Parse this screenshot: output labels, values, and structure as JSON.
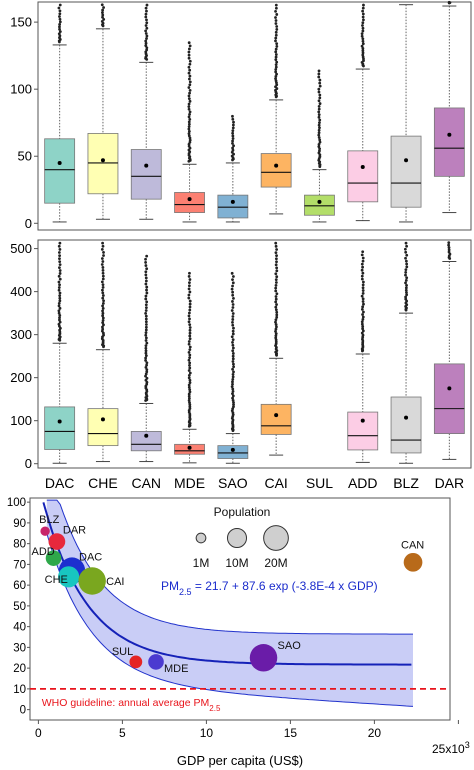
{
  "colors": {
    "DAC": "#8ed3c7",
    "CHE": "#ffffb3",
    "CAN": "#bebada",
    "MDE": "#fb8072",
    "SAO": "#80b1d3",
    "CAI": "#fdb462",
    "SUL": "#b3de69",
    "ADD": "#fccde5",
    "BLZ": "#d9d9d9",
    "DAR": "#bc80bd"
  },
  "chart_data": [
    {
      "type": "box",
      "categories": [
        "DAC",
        "CHE",
        "CAN",
        "MDE",
        "SAO",
        "CAI",
        "SUL",
        "ADD",
        "BLZ",
        "DAR"
      ],
      "ylim": [
        -5,
        165
      ],
      "yticks": [
        "0",
        "50",
        "100",
        "150"
      ],
      "boxes": [
        {
          "cat": "DAC",
          "low": 1,
          "q1": 15,
          "median": 40,
          "q3": 63,
          "high": 133,
          "mean": 45,
          "outliers_to": 165
        },
        {
          "cat": "CHE",
          "low": 3,
          "q1": 22,
          "median": 45,
          "q3": 67,
          "high": 145,
          "mean": 47,
          "outliers_to": 165
        },
        {
          "cat": "CAN",
          "low": 3,
          "q1": 18,
          "median": 35,
          "q3": 55,
          "high": 120,
          "mean": 43,
          "outliers_to": 165
        },
        {
          "cat": "MDE",
          "low": 1,
          "q1": 8,
          "median": 14,
          "q3": 23,
          "high": 44,
          "mean": 18,
          "outliers_to": 137
        },
        {
          "cat": "SAO",
          "low": 1,
          "q1": 4,
          "median": 12,
          "q3": 21,
          "high": 45,
          "mean": 16,
          "outliers_to": 82
        },
        {
          "cat": "CAI",
          "low": 7,
          "q1": 27,
          "median": 38,
          "q3": 52,
          "high": 92,
          "mean": 43,
          "outliers_to": 165
        },
        {
          "cat": "SUL",
          "low": 1,
          "q1": 6,
          "median": 13,
          "q3": 21,
          "high": 40,
          "mean": 16,
          "outliers_to": 116
        },
        {
          "cat": "ADD",
          "low": 2,
          "q1": 16,
          "median": 30,
          "q3": 54,
          "high": 115,
          "mean": 42,
          "outliers_to": 165
        },
        {
          "cat": "BLZ",
          "low": 1,
          "q1": 12,
          "median": 30,
          "q3": 65,
          "high": 163,
          "mean": 47,
          "outliers_to": 0
        },
        {
          "cat": "DAR",
          "low": 8,
          "q1": 35,
          "median": 56,
          "q3": 86,
          "high": 162,
          "mean": 66,
          "outliers_to": 165
        }
      ]
    },
    {
      "type": "box",
      "categories": [
        "DAC",
        "CHE",
        "CAN",
        "MDE",
        "SAO",
        "CAI",
        "SUL",
        "ADD",
        "BLZ",
        "DAR"
      ],
      "ylim": [
        -10,
        520
      ],
      "yticks": [
        "0",
        "100",
        "200",
        "300",
        "400",
        "500"
      ],
      "boxes": [
        {
          "cat": "DAC",
          "low": 1,
          "q1": 33,
          "median": 75,
          "q3": 132,
          "high": 280,
          "mean": 98,
          "outliers_to": 520
        },
        {
          "cat": "CHE",
          "low": 5,
          "q1": 42,
          "median": 70,
          "q3": 128,
          "high": 265,
          "mean": 103,
          "outliers_to": 520
        },
        {
          "cat": "CAN",
          "low": 5,
          "q1": 30,
          "median": 45,
          "q3": 75,
          "high": 140,
          "mean": 65,
          "outliers_to": 490
        },
        {
          "cat": "MDE",
          "low": 2,
          "q1": 22,
          "median": 30,
          "q3": 45,
          "high": 80,
          "mean": 37,
          "outliers_to": 450
        },
        {
          "cat": "SAO",
          "low": 1,
          "q1": 12,
          "median": 25,
          "q3": 42,
          "high": 70,
          "mean": 32,
          "outliers_to": 450
        },
        {
          "cat": "CAI",
          "low": 20,
          "q1": 68,
          "median": 88,
          "q3": 138,
          "high": 245,
          "mean": 113,
          "outliers_to": 520
        },
        {
          "cat": "SUL",
          "low": null,
          "q1": null,
          "median": null,
          "q3": null,
          "high": null,
          "mean": null,
          "outliers_to": 0
        },
        {
          "cat": "ADD",
          "low": 3,
          "q1": 32,
          "median": 65,
          "q3": 120,
          "high": 255,
          "mean": 100,
          "outliers_to": 500
        },
        {
          "cat": "BLZ",
          "low": 1,
          "q1": 25,
          "median": 55,
          "q3": 155,
          "high": 350,
          "mean": 107,
          "outliers_to": 520
        },
        {
          "cat": "DAR",
          "low": 10,
          "q1": 70,
          "median": 128,
          "q3": 232,
          "high": 470,
          "mean": 175,
          "outliers_to": 520
        }
      ]
    },
    {
      "type": "scatter",
      "xlabel": "GDP per capita (US$)",
      "x_multiplier": "x10",
      "x_multiplier_exp": "3",
      "xlim": [
        -0.5,
        24.5
      ],
      "ylim": [
        -5,
        102
      ],
      "xticks": [
        "0",
        "5",
        "10",
        "15",
        "20",
        "25"
      ],
      "yticks": [
        "0",
        "10",
        "20",
        "30",
        "40",
        "50",
        "60",
        "70",
        "80",
        "90",
        "100"
      ],
      "fit": {
        "intercept": 21.7,
        "amplitude": 87.6,
        "rate": 0.00038
      },
      "equation": {
        "lhs": "PM",
        "sub": "2.5",
        "rhs": " = 21.7 + 87.6 exp (-3.8E-4 x GDP)"
      },
      "guideline": {
        "value": 10,
        "label": "WHO guideline: annual average PM",
        "sub": "2.5"
      },
      "legend": {
        "title": "Population",
        "items": [
          {
            "label": "1M",
            "pop": 1
          },
          {
            "label": "10M",
            "pop": 10
          },
          {
            "label": "20M",
            "pop": 20
          }
        ]
      },
      "points": [
        {
          "city": "BLZ",
          "gdp": 0.4,
          "pm": 86,
          "pop": 0.5
        },
        {
          "city": "DAR",
          "gdp": 1.1,
          "pm": 81,
          "pop": 5
        },
        {
          "city": "ADD",
          "gdp": 0.9,
          "pm": 73,
          "pop": 4
        },
        {
          "city": "DAC",
          "gdp": 2.0,
          "pm": 67,
          "pop": 18
        },
        {
          "city": "CHE",
          "gdp": 1.8,
          "pm": 64,
          "pop": 10
        },
        {
          "city": "CAI",
          "gdp": 3.2,
          "pm": 62,
          "pop": 20
        },
        {
          "city": "CAN",
          "gdp": 22.3,
          "pm": 71,
          "pop": 7
        },
        {
          "city": "SUL",
          "gdp": 5.8,
          "pm": 23,
          "pop": 2
        },
        {
          "city": "MDE",
          "gdp": 7.0,
          "pm": 23,
          "pop": 4
        },
        {
          "city": "SAO",
          "gdp": 13.4,
          "pm": 25,
          "pop": 20
        }
      ]
    }
  ]
}
